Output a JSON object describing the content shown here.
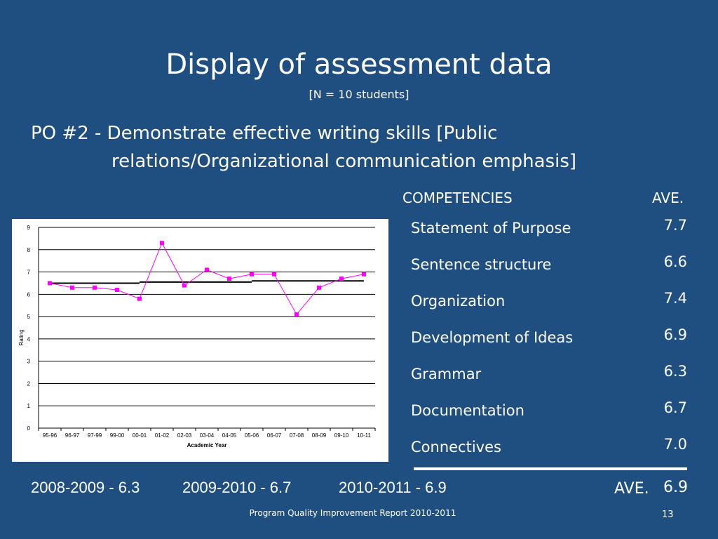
{
  "slide": {
    "title": "Display of assessment data",
    "subtitle": "[N = 10 students]",
    "po_line1": "PO #2 - Demonstrate effective writing skills [Public",
    "po_line2": "relations/Organizational communication emphasis]",
    "competencies_header": "COMPETENCIES",
    "ave_header": "AVE.",
    "competencies": [
      {
        "name": "Statement of Purpose",
        "ave": "7.7"
      },
      {
        "name": "Sentence structure",
        "ave": "6.6"
      },
      {
        "name": "Organization",
        "ave": "7.4"
      },
      {
        "name": "Development of Ideas",
        "ave": "6.9"
      },
      {
        "name": "Grammar",
        "ave": "6.3"
      },
      {
        "name": "Documentation",
        "ave": "6.7"
      },
      {
        "name": "Connectives",
        "ave": "7.0"
      }
    ],
    "year_averages": [
      "2008-2009 - 6.3",
      "2009-2010 - 6.7",
      "2010-2011 - 6.9"
    ],
    "overall_label": "AVE.",
    "overall_value": "6.9",
    "footer": "Program Quality Improvement Report 2010-2011",
    "page_number": "13"
  },
  "colors": {
    "background": "#1f4e80",
    "series": "#ff00ff",
    "trend": "#000000"
  },
  "chart_data": {
    "type": "line",
    "categories": [
      "95-96",
      "96-97",
      "97-99",
      "99-00",
      "00-01",
      "01-02",
      "02-03",
      "03-04",
      "04-05",
      "05-06",
      "06-07",
      "07-08",
      "08-09",
      "09-10",
      "10-11"
    ],
    "series": [
      {
        "values": [
          6.5,
          6.3,
          6.3,
          6.2,
          5.8,
          8.3,
          6.4,
          7.1,
          6.7,
          6.9,
          6.9,
          5.1,
          6.3,
          6.7,
          6.9
        ]
      }
    ],
    "trend_segments": [
      {
        "from": 0,
        "to": 4,
        "value": 6.5
      },
      {
        "from": 4,
        "to": 9,
        "value": 6.55
      },
      {
        "from": 9,
        "to": 14,
        "value": 6.6
      }
    ],
    "xlabel": "Academic Year",
    "ylabel": "Rating",
    "ylim": [
      0,
      9
    ],
    "yticks": [
      "0",
      "1",
      "2",
      "3",
      "4",
      "5",
      "6",
      "7",
      "8",
      "9"
    ],
    "grid": true,
    "marker": "square"
  }
}
